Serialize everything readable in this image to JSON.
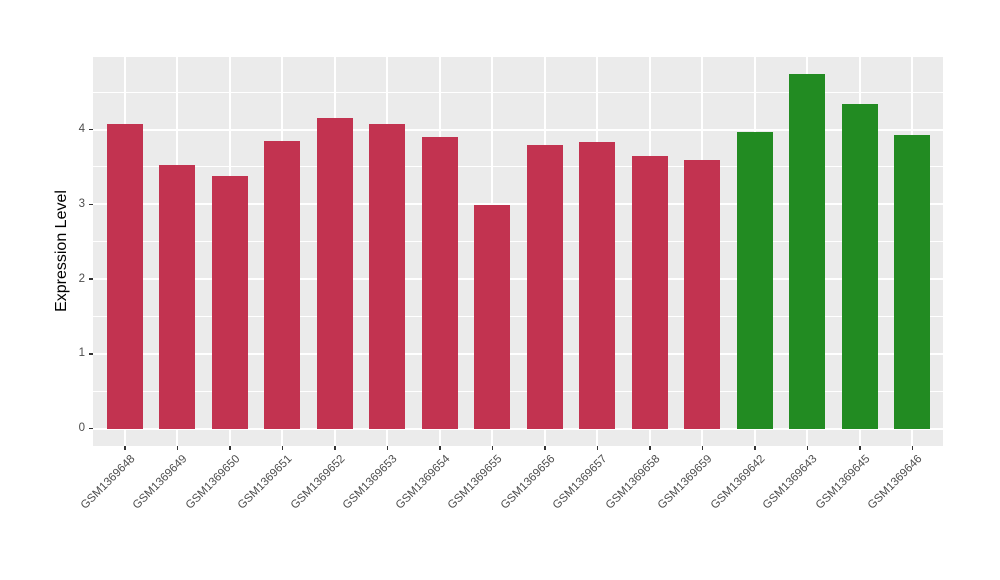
{
  "chart_data": {
    "type": "bar",
    "title": "",
    "xlabel": "",
    "ylabel": "Expression Level",
    "categories": [
      "GSM1369648",
      "GSM1369649",
      "GSM1369650",
      "GSM1369651",
      "GSM1369652",
      "GSM1369653",
      "GSM1369654",
      "GSM1369655",
      "GSM1369656",
      "GSM1369657",
      "GSM1369658",
      "GSM1369659",
      "GSM1369642",
      "GSM1369643",
      "GSM1369645",
      "GSM1369646"
    ],
    "values": [
      4.08,
      3.52,
      3.38,
      3.84,
      4.16,
      4.07,
      3.9,
      2.99,
      3.79,
      3.83,
      3.65,
      3.59,
      3.97,
      4.74,
      4.34,
      3.93
    ],
    "bar_colors": [
      "#C23350",
      "#C23350",
      "#C23350",
      "#C23350",
      "#C23350",
      "#C23350",
      "#C23350",
      "#C23350",
      "#C23350",
      "#C23350",
      "#C23350",
      "#C23350",
      "#228B22",
      "#228B22",
      "#228B22",
      "#228B22"
    ],
    "group_colors": {
      "red": "#C23350",
      "green": "#228B22"
    },
    "yticks": [
      0,
      1,
      2,
      3,
      4
    ],
    "ytick_labels": [
      "0",
      "1",
      "2",
      "3",
      "4"
    ],
    "minor_yticks": [
      0.5,
      1.5,
      2.5,
      3.5,
      4.5
    ],
    "ylim": [
      -0.24,
      4.97
    ],
    "panel_background": "#EBEBEB",
    "gridline_color": "#FFFFFF",
    "grid": "major horizontal + minor horizontal + major vertical at category centers",
    "legend": "none"
  }
}
